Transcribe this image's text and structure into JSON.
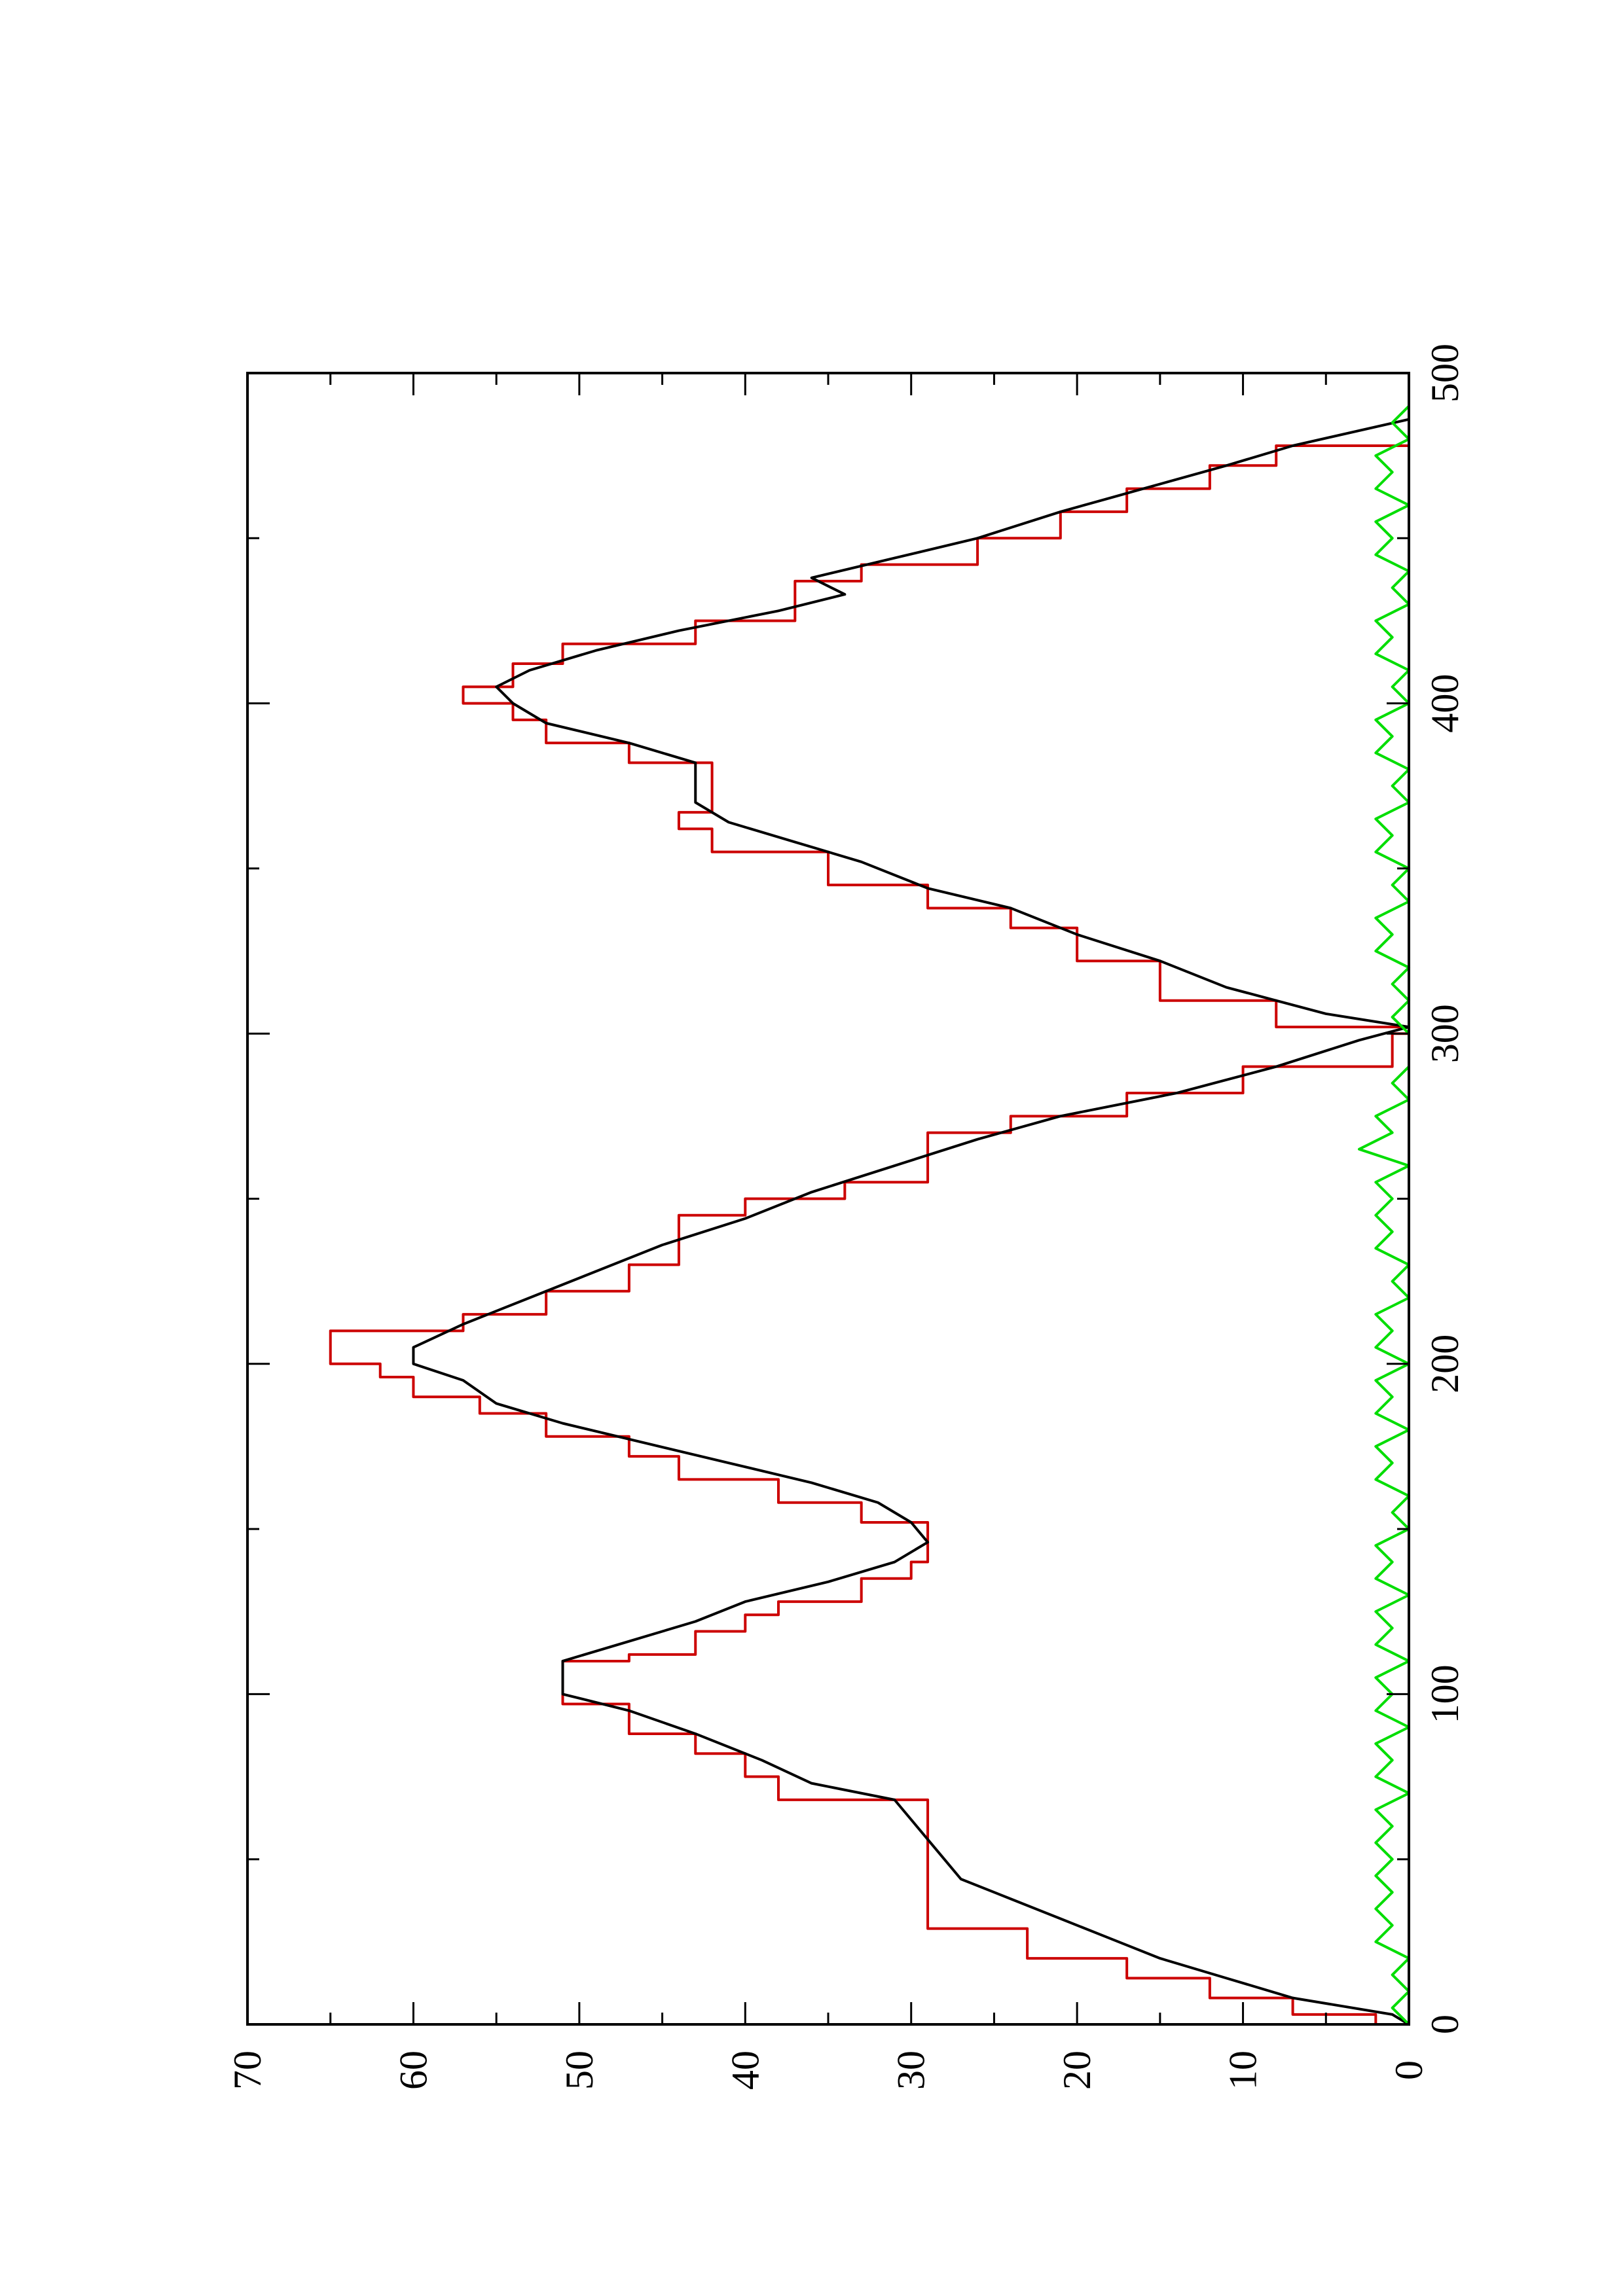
{
  "chart_data": {
    "type": "line",
    "title": "",
    "xlabel": "",
    "ylabel": "",
    "orientation": "rotated 90 degrees counter-clockwise (x axis runs bottom-to-top along the page)",
    "xlim": [
      0,
      500
    ],
    "ylim": [
      0,
      70
    ],
    "x_ticks": [
      0,
      100,
      200,
      300,
      400,
      500
    ],
    "y_ticks": [
      0,
      10,
      20,
      30,
      40,
      50,
      60,
      70
    ],
    "x_tick_labels": [
      "0",
      "100",
      "200",
      "300",
      "400",
      "500"
    ],
    "y_tick_labels": [
      "0",
      "10",
      "20",
      "30",
      "40",
      "50",
      "60",
      "70"
    ],
    "grid": false,
    "legend": "none",
    "series": [
      {
        "color": "#cc0000",
        "style": "step",
        "points": [
          [
            0,
            0
          ],
          [
            3,
            2
          ],
          [
            8,
            7
          ],
          [
            14,
            12
          ],
          [
            20,
            17
          ],
          [
            29,
            23
          ],
          [
            40,
            29
          ],
          [
            68,
            29
          ],
          [
            75,
            38
          ],
          [
            82,
            40
          ],
          [
            88,
            43
          ],
          [
            97,
            47
          ],
          [
            100,
            51
          ],
          [
            110,
            51
          ],
          [
            112,
            47
          ],
          [
            119,
            43
          ],
          [
            124,
            40
          ],
          [
            128,
            38
          ],
          [
            135,
            33
          ],
          [
            140,
            30
          ],
          [
            152,
            29
          ],
          [
            158,
            33
          ],
          [
            165,
            38
          ],
          [
            172,
            44
          ],
          [
            178,
            47
          ],
          [
            185,
            52
          ],
          [
            190,
            56
          ],
          [
            196,
            60
          ],
          [
            200,
            62
          ],
          [
            208,
            65
          ],
          [
            210,
            65
          ],
          [
            215,
            57
          ],
          [
            222,
            52
          ],
          [
            230,
            47
          ],
          [
            238,
            44
          ],
          [
            245,
            44
          ],
          [
            250,
            40
          ],
          [
            255,
            34
          ],
          [
            262,
            29
          ],
          [
            270,
            29
          ],
          [
            275,
            24
          ],
          [
            282,
            17
          ],
          [
            290,
            10
          ],
          [
            300,
            1
          ],
          [
            302,
            0
          ],
          [
            310,
            8
          ],
          [
            322,
            15
          ],
          [
            332,
            20
          ],
          [
            338,
            24
          ],
          [
            345,
            29
          ],
          [
            355,
            35
          ],
          [
            362,
            42
          ],
          [
            367,
            44
          ],
          [
            372,
            42
          ],
          [
            382,
            42
          ],
          [
            388,
            47
          ],
          [
            395,
            52
          ],
          [
            400,
            54
          ],
          [
            405,
            57
          ],
          [
            412,
            54
          ],
          [
            418,
            51
          ],
          [
            425,
            43
          ],
          [
            432,
            37
          ],
          [
            437,
            37
          ],
          [
            442,
            33
          ],
          [
            450,
            26
          ],
          [
            458,
            21
          ],
          [
            465,
            17
          ],
          [
            472,
            12
          ],
          [
            478,
            8
          ],
          [
            486,
            0
          ]
        ]
      },
      {
        "color": "#000000",
        "style": "line",
        "points": [
          [
            0,
            0
          ],
          [
            3,
            1
          ],
          [
            8,
            7
          ],
          [
            14,
            11
          ],
          [
            20,
            15
          ],
          [
            26,
            18
          ],
          [
            32,
            21
          ],
          [
            38,
            24
          ],
          [
            44,
            27
          ],
          [
            50,
            28
          ],
          [
            56,
            29
          ],
          [
            62,
            30
          ],
          [
            68,
            31
          ],
          [
            73,
            36
          ],
          [
            80,
            39
          ],
          [
            88,
            43
          ],
          [
            95,
            47
          ],
          [
            100,
            51
          ],
          [
            110,
            51
          ],
          [
            116,
            47
          ],
          [
            122,
            43
          ],
          [
            128,
            40
          ],
          [
            134,
            35
          ],
          [
            140,
            31
          ],
          [
            146,
            29
          ],
          [
            152,
            30
          ],
          [
            158,
            32
          ],
          [
            164,
            36
          ],
          [
            170,
            41
          ],
          [
            176,
            46
          ],
          [
            182,
            51
          ],
          [
            188,
            55
          ],
          [
            195,
            57
          ],
          [
            200,
            60
          ],
          [
            205,
            60
          ],
          [
            212,
            57
          ],
          [
            220,
            53
          ],
          [
            228,
            49
          ],
          [
            236,
            45
          ],
          [
            244,
            40
          ],
          [
            252,
            36
          ],
          [
            260,
            31
          ],
          [
            268,
            26
          ],
          [
            275,
            21
          ],
          [
            282,
            14
          ],
          [
            290,
            8
          ],
          [
            298,
            3
          ],
          [
            302,
            0
          ],
          [
            306,
            5
          ],
          [
            314,
            11
          ],
          [
            322,
            15
          ],
          [
            330,
            20
          ],
          [
            338,
            24
          ],
          [
            344,
            29
          ],
          [
            352,
            33
          ],
          [
            358,
            37
          ],
          [
            364,
            41
          ],
          [
            370,
            43
          ],
          [
            376,
            43
          ],
          [
            382,
            43
          ],
          [
            388,
            47
          ],
          [
            394,
            52
          ],
          [
            400,
            54
          ],
          [
            405,
            55
          ],
          [
            410,
            53
          ],
          [
            416,
            49
          ],
          [
            422,
            44
          ],
          [
            428,
            38
          ],
          [
            433,
            34
          ],
          [
            438,
            36
          ],
          [
            444,
            31
          ],
          [
            450,
            26
          ],
          [
            458,
            21
          ],
          [
            465,
            16
          ],
          [
            472,
            11
          ],
          [
            478,
            7
          ],
          [
            486,
            0
          ]
        ]
      },
      {
        "color": "#00dd00",
        "style": "line",
        "points": [
          [
            0,
            0
          ],
          [
            5,
            1
          ],
          [
            10,
            0
          ],
          [
            15,
            1
          ],
          [
            20,
            0
          ],
          [
            25,
            2
          ],
          [
            30,
            1
          ],
          [
            35,
            2
          ],
          [
            40,
            1
          ],
          [
            45,
            2
          ],
          [
            50,
            1
          ],
          [
            55,
            2
          ],
          [
            60,
            1
          ],
          [
            65,
            2
          ],
          [
            70,
            0
          ],
          [
            75,
            2
          ],
          [
            80,
            1
          ],
          [
            85,
            2
          ],
          [
            90,
            0
          ],
          [
            95,
            2
          ],
          [
            100,
            1
          ],
          [
            105,
            2
          ],
          [
            110,
            0
          ],
          [
            115,
            2
          ],
          [
            120,
            1
          ],
          [
            125,
            2
          ],
          [
            130,
            0
          ],
          [
            135,
            2
          ],
          [
            140,
            1
          ],
          [
            145,
            2
          ],
          [
            150,
            0
          ],
          [
            155,
            1
          ],
          [
            160,
            0
          ],
          [
            165,
            2
          ],
          [
            170,
            1
          ],
          [
            175,
            2
          ],
          [
            180,
            0
          ],
          [
            185,
            2
          ],
          [
            190,
            1
          ],
          [
            195,
            2
          ],
          [
            200,
            0
          ],
          [
            205,
            2
          ],
          [
            210,
            1
          ],
          [
            215,
            2
          ],
          [
            220,
            0
          ],
          [
            225,
            1
          ],
          [
            230,
            0
          ],
          [
            235,
            2
          ],
          [
            240,
            1
          ],
          [
            245,
            2
          ],
          [
            250,
            1
          ],
          [
            255,
            2
          ],
          [
            260,
            0
          ],
          [
            265,
            3
          ],
          [
            270,
            1
          ],
          [
            275,
            2
          ],
          [
            280,
            0
          ],
          [
            285,
            1
          ],
          [
            290,
            0
          ],
          [
            295,
            0
          ],
          [
            300,
            0
          ],
          [
            305,
            1
          ],
          [
            310,
            0
          ],
          [
            315,
            1
          ],
          [
            320,
            0
          ],
          [
            325,
            2
          ],
          [
            330,
            1
          ],
          [
            335,
            2
          ],
          [
            340,
            0
          ],
          [
            345,
            1
          ],
          [
            350,
            0
          ],
          [
            355,
            2
          ],
          [
            360,
            1
          ],
          [
            365,
            2
          ],
          [
            370,
            0
          ],
          [
            375,
            1
          ],
          [
            380,
            0
          ],
          [
            385,
            2
          ],
          [
            390,
            1
          ],
          [
            395,
            2
          ],
          [
            400,
            0
          ],
          [
            405,
            1
          ],
          [
            410,
            0
          ],
          [
            415,
            2
          ],
          [
            420,
            1
          ],
          [
            425,
            2
          ],
          [
            430,
            0
          ],
          [
            435,
            1
          ],
          [
            440,
            0
          ],
          [
            445,
            2
          ],
          [
            450,
            1
          ],
          [
            455,
            2
          ],
          [
            460,
            0
          ],
          [
            465,
            2
          ],
          [
            470,
            1
          ],
          [
            475,
            2
          ],
          [
            480,
            0
          ],
          [
            485,
            1
          ],
          [
            490,
            0
          ]
        ]
      }
    ]
  }
}
